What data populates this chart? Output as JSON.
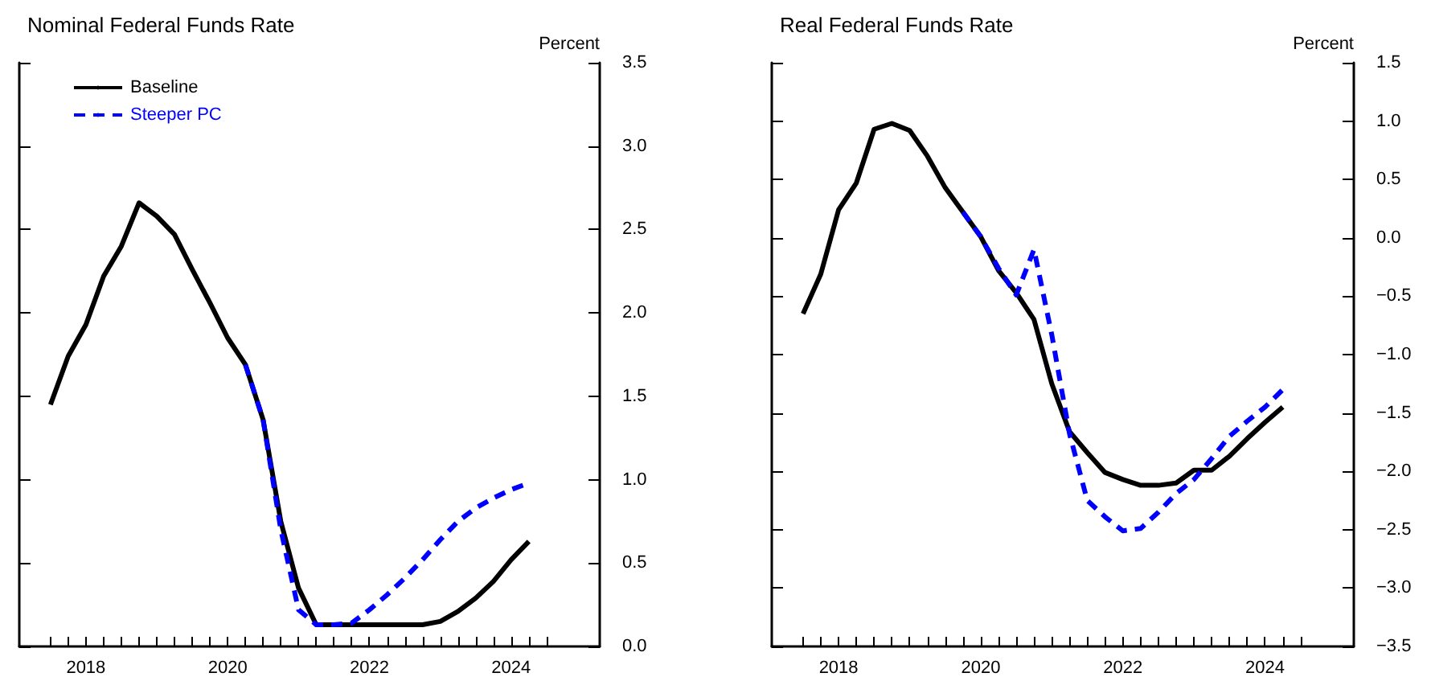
{
  "chart_data": [
    {
      "type": "line",
      "title": "Nominal Federal Funds Rate",
      "ylabel": "Percent",
      "x": [
        2018,
        2018.25,
        2018.5,
        2018.75,
        2019,
        2019.25,
        2019.5,
        2019.75,
        2020,
        2020.25,
        2020.5,
        2020.75,
        2021,
        2021.25,
        2021.5,
        2021.75,
        2022,
        2022.25,
        2022.5,
        2022.75,
        2023,
        2023.25,
        2023.5,
        2023.75,
        2024,
        2024.25,
        2024.5,
        2024.75
      ],
      "series": [
        {
          "name": "Baseline",
          "color": "#000000",
          "line_style": "solid",
          "values": [
            1.45,
            1.74,
            1.93,
            2.22,
            2.4,
            2.66,
            2.58,
            2.47,
            2.26,
            2.06,
            1.85,
            1.69,
            1.36,
            0.75,
            0.35,
            0.13,
            0.13,
            0.13,
            0.13,
            0.13,
            0.13,
            0.13,
            0.15,
            0.21,
            0.29,
            0.39,
            0.52,
            0.63
          ]
        },
        {
          "name": "Steeper PC",
          "color": "#0000ff",
          "line_style": "dashed",
          "values": [
            null,
            null,
            null,
            null,
            null,
            null,
            null,
            null,
            null,
            null,
            null,
            1.69,
            1.36,
            0.7,
            0.22,
            0.13,
            0.13,
            0.14,
            0.22,
            0.31,
            0.41,
            0.52,
            0.64,
            0.75,
            0.83,
            0.89,
            0.94,
            0.98
          ]
        }
      ],
      "xlim": [
        2017.56,
        2025.75
      ],
      "xticks": [
        {
          "value": 2018,
          "label": null
        },
        {
          "value": 2018.25,
          "label": null
        },
        {
          "value": 2018.5,
          "label": "2018"
        },
        {
          "value": 2018.75,
          "label": null
        },
        {
          "value": 2019,
          "label": null
        },
        {
          "value": 2019.25,
          "label": null
        },
        {
          "value": 2019.5,
          "label": null
        },
        {
          "value": 2019.75,
          "label": null
        },
        {
          "value": 2020,
          "label": null
        },
        {
          "value": 2020.25,
          "label": null
        },
        {
          "value": 2020.5,
          "label": "2020"
        },
        {
          "value": 2020.75,
          "label": null
        },
        {
          "value": 2021,
          "label": null
        },
        {
          "value": 2021.25,
          "label": null
        },
        {
          "value": 2021.5,
          "label": null
        },
        {
          "value": 2021.75,
          "label": null
        },
        {
          "value": 2022,
          "label": null
        },
        {
          "value": 2022.25,
          "label": null
        },
        {
          "value": 2022.5,
          "label": "2022"
        },
        {
          "value": 2022.75,
          "label": null
        },
        {
          "value": 2023,
          "label": null
        },
        {
          "value": 2023.25,
          "label": null
        },
        {
          "value": 2023.5,
          "label": null
        },
        {
          "value": 2023.75,
          "label": null
        },
        {
          "value": 2024,
          "label": null
        },
        {
          "value": 2024.25,
          "label": null
        },
        {
          "value": 2024.5,
          "label": "2024"
        },
        {
          "value": 2024.75,
          "label": null
        },
        {
          "value": 2025,
          "label": null
        }
      ],
      "ylim": [
        0,
        3.5
      ],
      "yticks": [
        {
          "value": 0,
          "label": "0.0"
        },
        {
          "value": 0.5,
          "label": "0.5"
        },
        {
          "value": 1,
          "label": "1.0"
        },
        {
          "value": 1.5,
          "label": "1.5"
        },
        {
          "value": 2,
          "label": "2.0"
        },
        {
          "value": 2.5,
          "label": "2.5"
        },
        {
          "value": 3,
          "label": "3.0"
        },
        {
          "value": 3.5,
          "label": "3.5"
        }
      ],
      "grid": false,
      "legend": "top left",
      "marker": "none"
    },
    {
      "type": "line",
      "title": "Real Federal Funds Rate",
      "ylabel": "Percent",
      "x": [
        2018,
        2018.25,
        2018.5,
        2018.75,
        2019,
        2019.25,
        2019.5,
        2019.75,
        2020,
        2020.25,
        2020.5,
        2020.75,
        2021,
        2021.25,
        2021.5,
        2021.75,
        2022,
        2022.25,
        2022.5,
        2022.75,
        2023,
        2023.25,
        2023.5,
        2023.75,
        2024,
        2024.25,
        2024.5,
        2024.75
      ],
      "series": [
        {
          "color": "#000000",
          "line_style": "solid",
          "values": [
            -0.65,
            -0.31,
            0.24,
            0.47,
            0.93,
            0.98,
            0.92,
            0.7,
            0.43,
            0.22,
            0.01,
            -0.28,
            -0.47,
            -0.7,
            -1.25,
            -1.66,
            -1.84,
            -2.01,
            -2.07,
            -2.12,
            -2.12,
            -2.1,
            -1.99,
            -1.99,
            -1.87,
            -1.72,
            -1.58,
            -1.45
          ]
        },
        {
          "color": "#0000ff",
          "line_style": "dashed",
          "values": [
            null,
            null,
            null,
            null,
            null,
            null,
            null,
            null,
            null,
            0.22,
            0.01,
            -0.26,
            -0.49,
            -0.1,
            -0.83,
            -1.68,
            -2.25,
            -2.39,
            -2.51,
            -2.49,
            -2.35,
            -2.19,
            -2.07,
            -1.89,
            -1.7,
            -1.57,
            -1.45,
            -1.3
          ]
        }
      ],
      "xlim": [
        2017.56,
        2025.75
      ],
      "xticks": [
        {
          "value": 2018,
          "label": null
        },
        {
          "value": 2018.25,
          "label": null
        },
        {
          "value": 2018.5,
          "label": "2018"
        },
        {
          "value": 2018.75,
          "label": null
        },
        {
          "value": 2019,
          "label": null
        },
        {
          "value": 2019.25,
          "label": null
        },
        {
          "value": 2019.5,
          "label": null
        },
        {
          "value": 2019.75,
          "label": null
        },
        {
          "value": 2020,
          "label": null
        },
        {
          "value": 2020.25,
          "label": null
        },
        {
          "value": 2020.5,
          "label": "2020"
        },
        {
          "value": 2020.75,
          "label": null
        },
        {
          "value": 2021,
          "label": null
        },
        {
          "value": 2021.25,
          "label": null
        },
        {
          "value": 2021.5,
          "label": null
        },
        {
          "value": 2021.75,
          "label": null
        },
        {
          "value": 2022,
          "label": null
        },
        {
          "value": 2022.25,
          "label": null
        },
        {
          "value": 2022.5,
          "label": "2022"
        },
        {
          "value": 2022.75,
          "label": null
        },
        {
          "value": 2023,
          "label": null
        },
        {
          "value": 2023.25,
          "label": null
        },
        {
          "value": 2023.5,
          "label": null
        },
        {
          "value": 2023.75,
          "label": null
        },
        {
          "value": 2024,
          "label": null
        },
        {
          "value": 2024.25,
          "label": null
        },
        {
          "value": 2024.5,
          "label": "2024"
        },
        {
          "value": 2024.75,
          "label": null
        },
        {
          "value": 2025,
          "label": null
        }
      ],
      "ylim": [
        -3.5,
        1.5
      ],
      "yticks": [
        {
          "value": -3.5,
          "label": "−3.5"
        },
        {
          "value": -3,
          "label": "−3.0"
        },
        {
          "value": -2.5,
          "label": "−2.5"
        },
        {
          "value": -2,
          "label": "−2.0"
        },
        {
          "value": -1.5,
          "label": "−1.5"
        },
        {
          "value": -1,
          "label": "−1.0"
        },
        {
          "value": -0.5,
          "label": "−0.5"
        },
        {
          "value": 0,
          "label": "0.0"
        },
        {
          "value": 0.5,
          "label": "0.5"
        },
        {
          "value": 1,
          "label": "1.0"
        },
        {
          "value": 1.5,
          "label": "1.5"
        }
      ],
      "grid": false,
      "legend": false,
      "marker": "none"
    }
  ]
}
